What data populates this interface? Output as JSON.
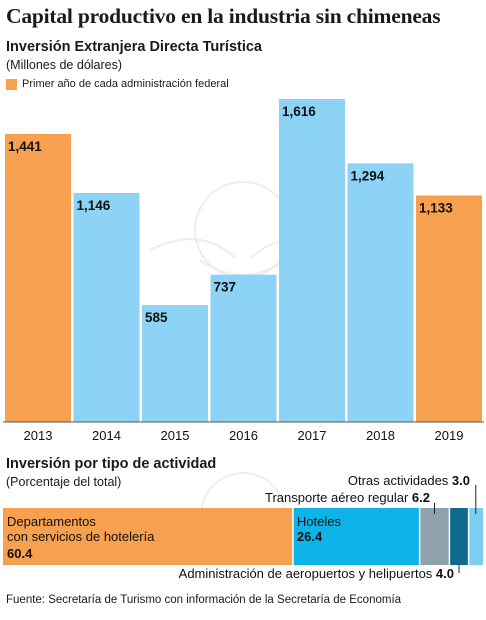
{
  "title": "Capital productivo en la industria sin chimeneas",
  "colors": {
    "highlight": "#F7A04F",
    "base": "#8DD3F5",
    "dark_blue": "#0E6A8F",
    "gray": "#8FA1AC",
    "light_blue": "#7ECDF2",
    "hotel_blue": "#0EB4E8"
  },
  "chart_data": [
    {
      "type": "bar",
      "title": "Inversión Extranjera Directa Turística",
      "ylabel": "(Millones de dólares)",
      "legend": [
        "Primer año de cada administración federal"
      ],
      "categories": [
        "2013",
        "2014",
        "2015",
        "2016",
        "2017",
        "2018",
        "2019"
      ],
      "values": [
        1441,
        1146,
        585,
        737,
        1616,
        1294,
        1133
      ],
      "value_labels": [
        "1,441",
        "1,146",
        "585",
        "737",
        "1,616",
        "1,294",
        "1,133"
      ],
      "highlighted": [
        true,
        false,
        false,
        false,
        false,
        false,
        true
      ],
      "ylim": [
        0,
        1616
      ],
      "grid": false
    },
    {
      "type": "bar",
      "orientation": "horizontal-stacked",
      "title": "Inversión por tipo de actividad",
      "ylabel": "(Porcentaje del total)",
      "series": [
        {
          "name": "Departamentos con servicios de hotelería",
          "name_lines": [
            "Departamentos",
            "con servicios de hotelería"
          ],
          "value": 60.4,
          "value_label": "60.4",
          "color": "#F7A04F"
        },
        {
          "name": "Hoteles",
          "value": 26.4,
          "value_label": "26.4",
          "color": "#0EB4E8"
        },
        {
          "name": "Transporte aéreo regular",
          "value": 6.2,
          "value_label": "6.2",
          "color": "#8FA1AC"
        },
        {
          "name": "Administración de aeropuertos y helipuertos",
          "value": 4.0,
          "value_label": "4.0",
          "color": "#0E6A8F"
        },
        {
          "name": "Otras actividades",
          "value": 3.0,
          "value_label": "3.0",
          "color": "#7ECDF2"
        }
      ]
    }
  ],
  "source": "Fuente: Secretaría de Turismo con información de la Secretaría de Economía"
}
